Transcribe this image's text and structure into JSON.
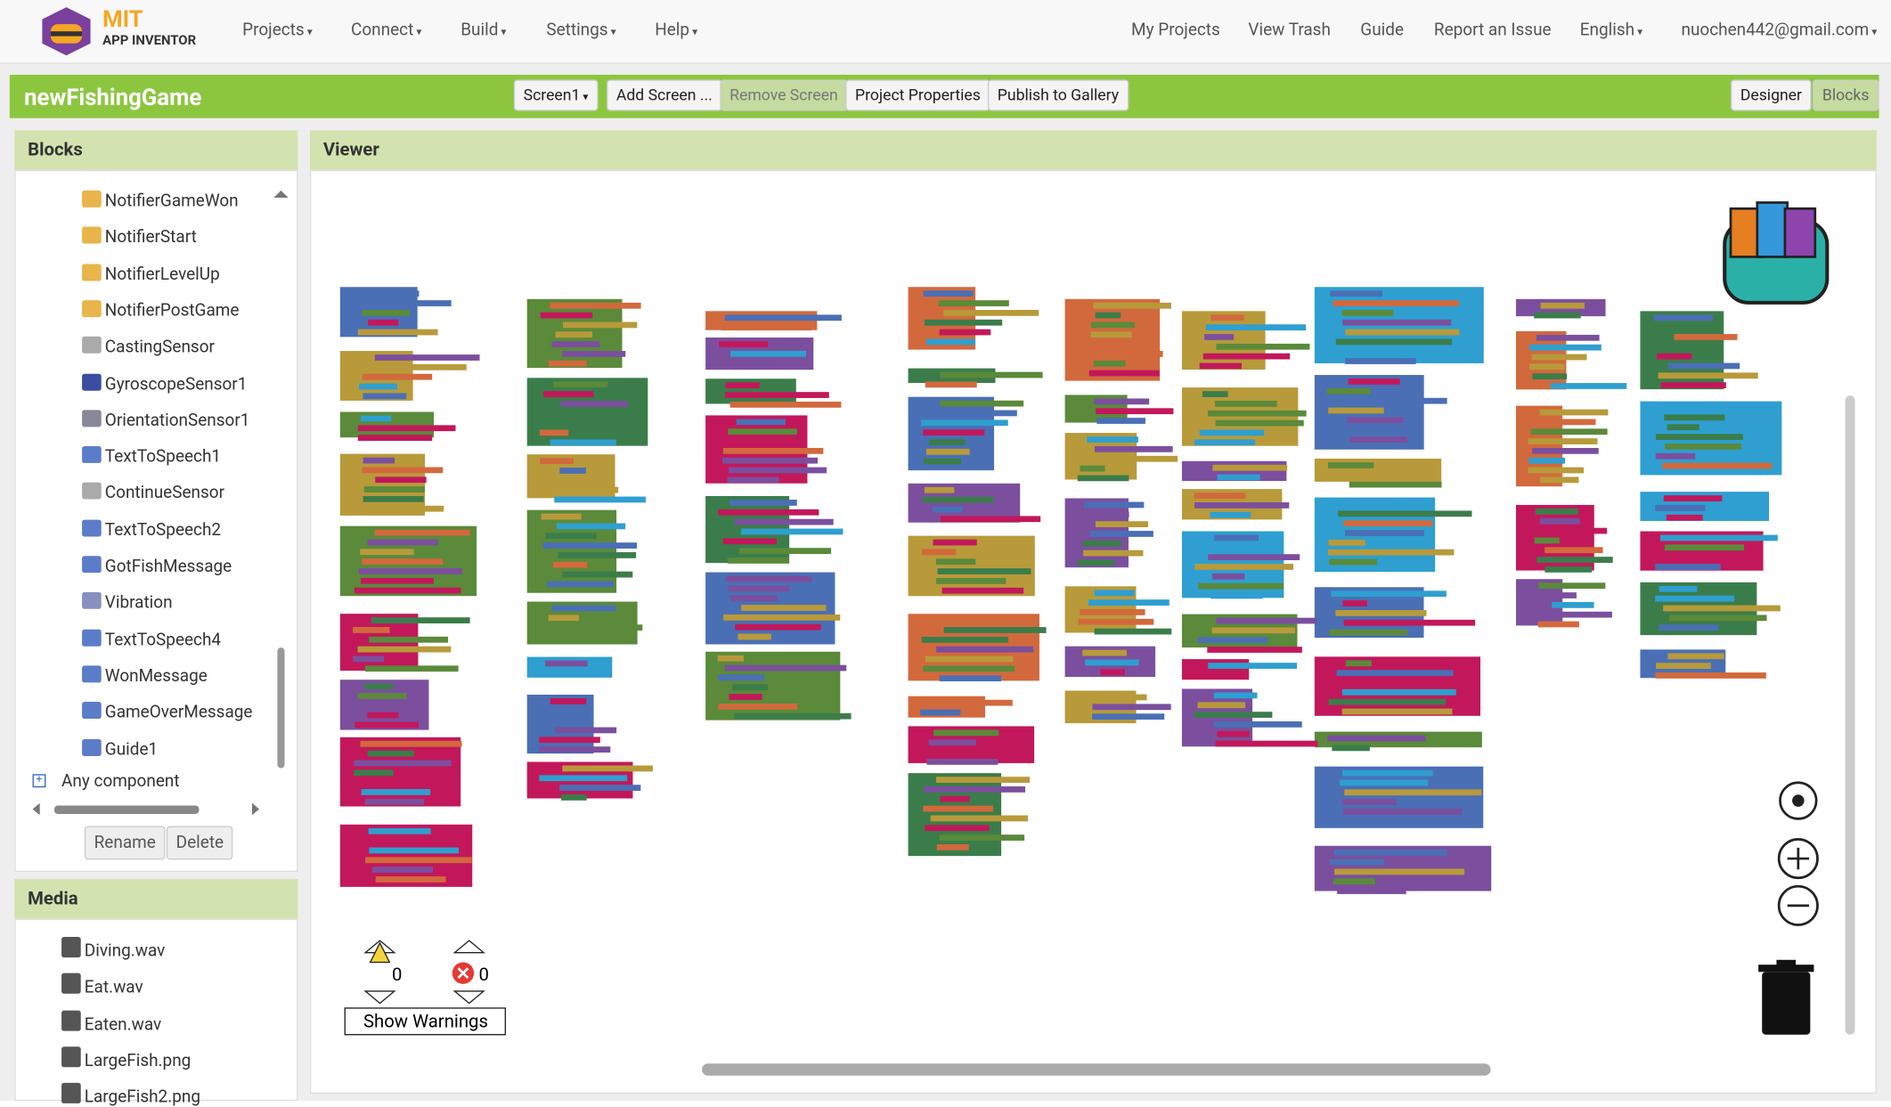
{
  "header": {
    "logo_title": "MIT",
    "logo_subtitle": "APP INVENTOR",
    "menus": [
      "Projects",
      "Connect",
      "Build",
      "Settings",
      "Help"
    ],
    "links": [
      "My Projects",
      "View Trash",
      "Guide",
      "Report an Issue"
    ],
    "language": "English",
    "account": "nuochen442@gmail.com"
  },
  "toolbar": {
    "project": "newFishingGame",
    "screen": "Screen1",
    "buttons": [
      "Add Screen ...",
      "Remove Screen",
      "Project Properties",
      "Publish to Gallery"
    ],
    "views": [
      "Designer",
      "Blocks"
    ]
  },
  "blocks_panel": {
    "title": "Blocks",
    "items": [
      "NotifierGameWon",
      "NotifierStart",
      "NotifierLevelUp",
      "NotifierPostGame",
      "CastingSensor",
      "GyroscopeSensor1",
      "OrientationSensor1",
      "TextToSpeech1",
      "ContinueSensor",
      "TextToSpeech2",
      "GotFishMessage",
      "Vibration",
      "TextToSpeech4",
      "WonMessage",
      "GameOverMessage",
      "Guide1"
    ],
    "any": "Any component",
    "buttons": [
      "Rename",
      "Delete"
    ]
  },
  "media_panel": {
    "title": "Media",
    "items": [
      "Diving.wav",
      "Eat.wav",
      "Eaten.wav",
      "LargeFish.png",
      "LargeFish2.png"
    ]
  },
  "viewer": {
    "title": "Viewer",
    "warnings": "0",
    "errors": "0",
    "show_warnings": "Show Warnings"
  }
}
